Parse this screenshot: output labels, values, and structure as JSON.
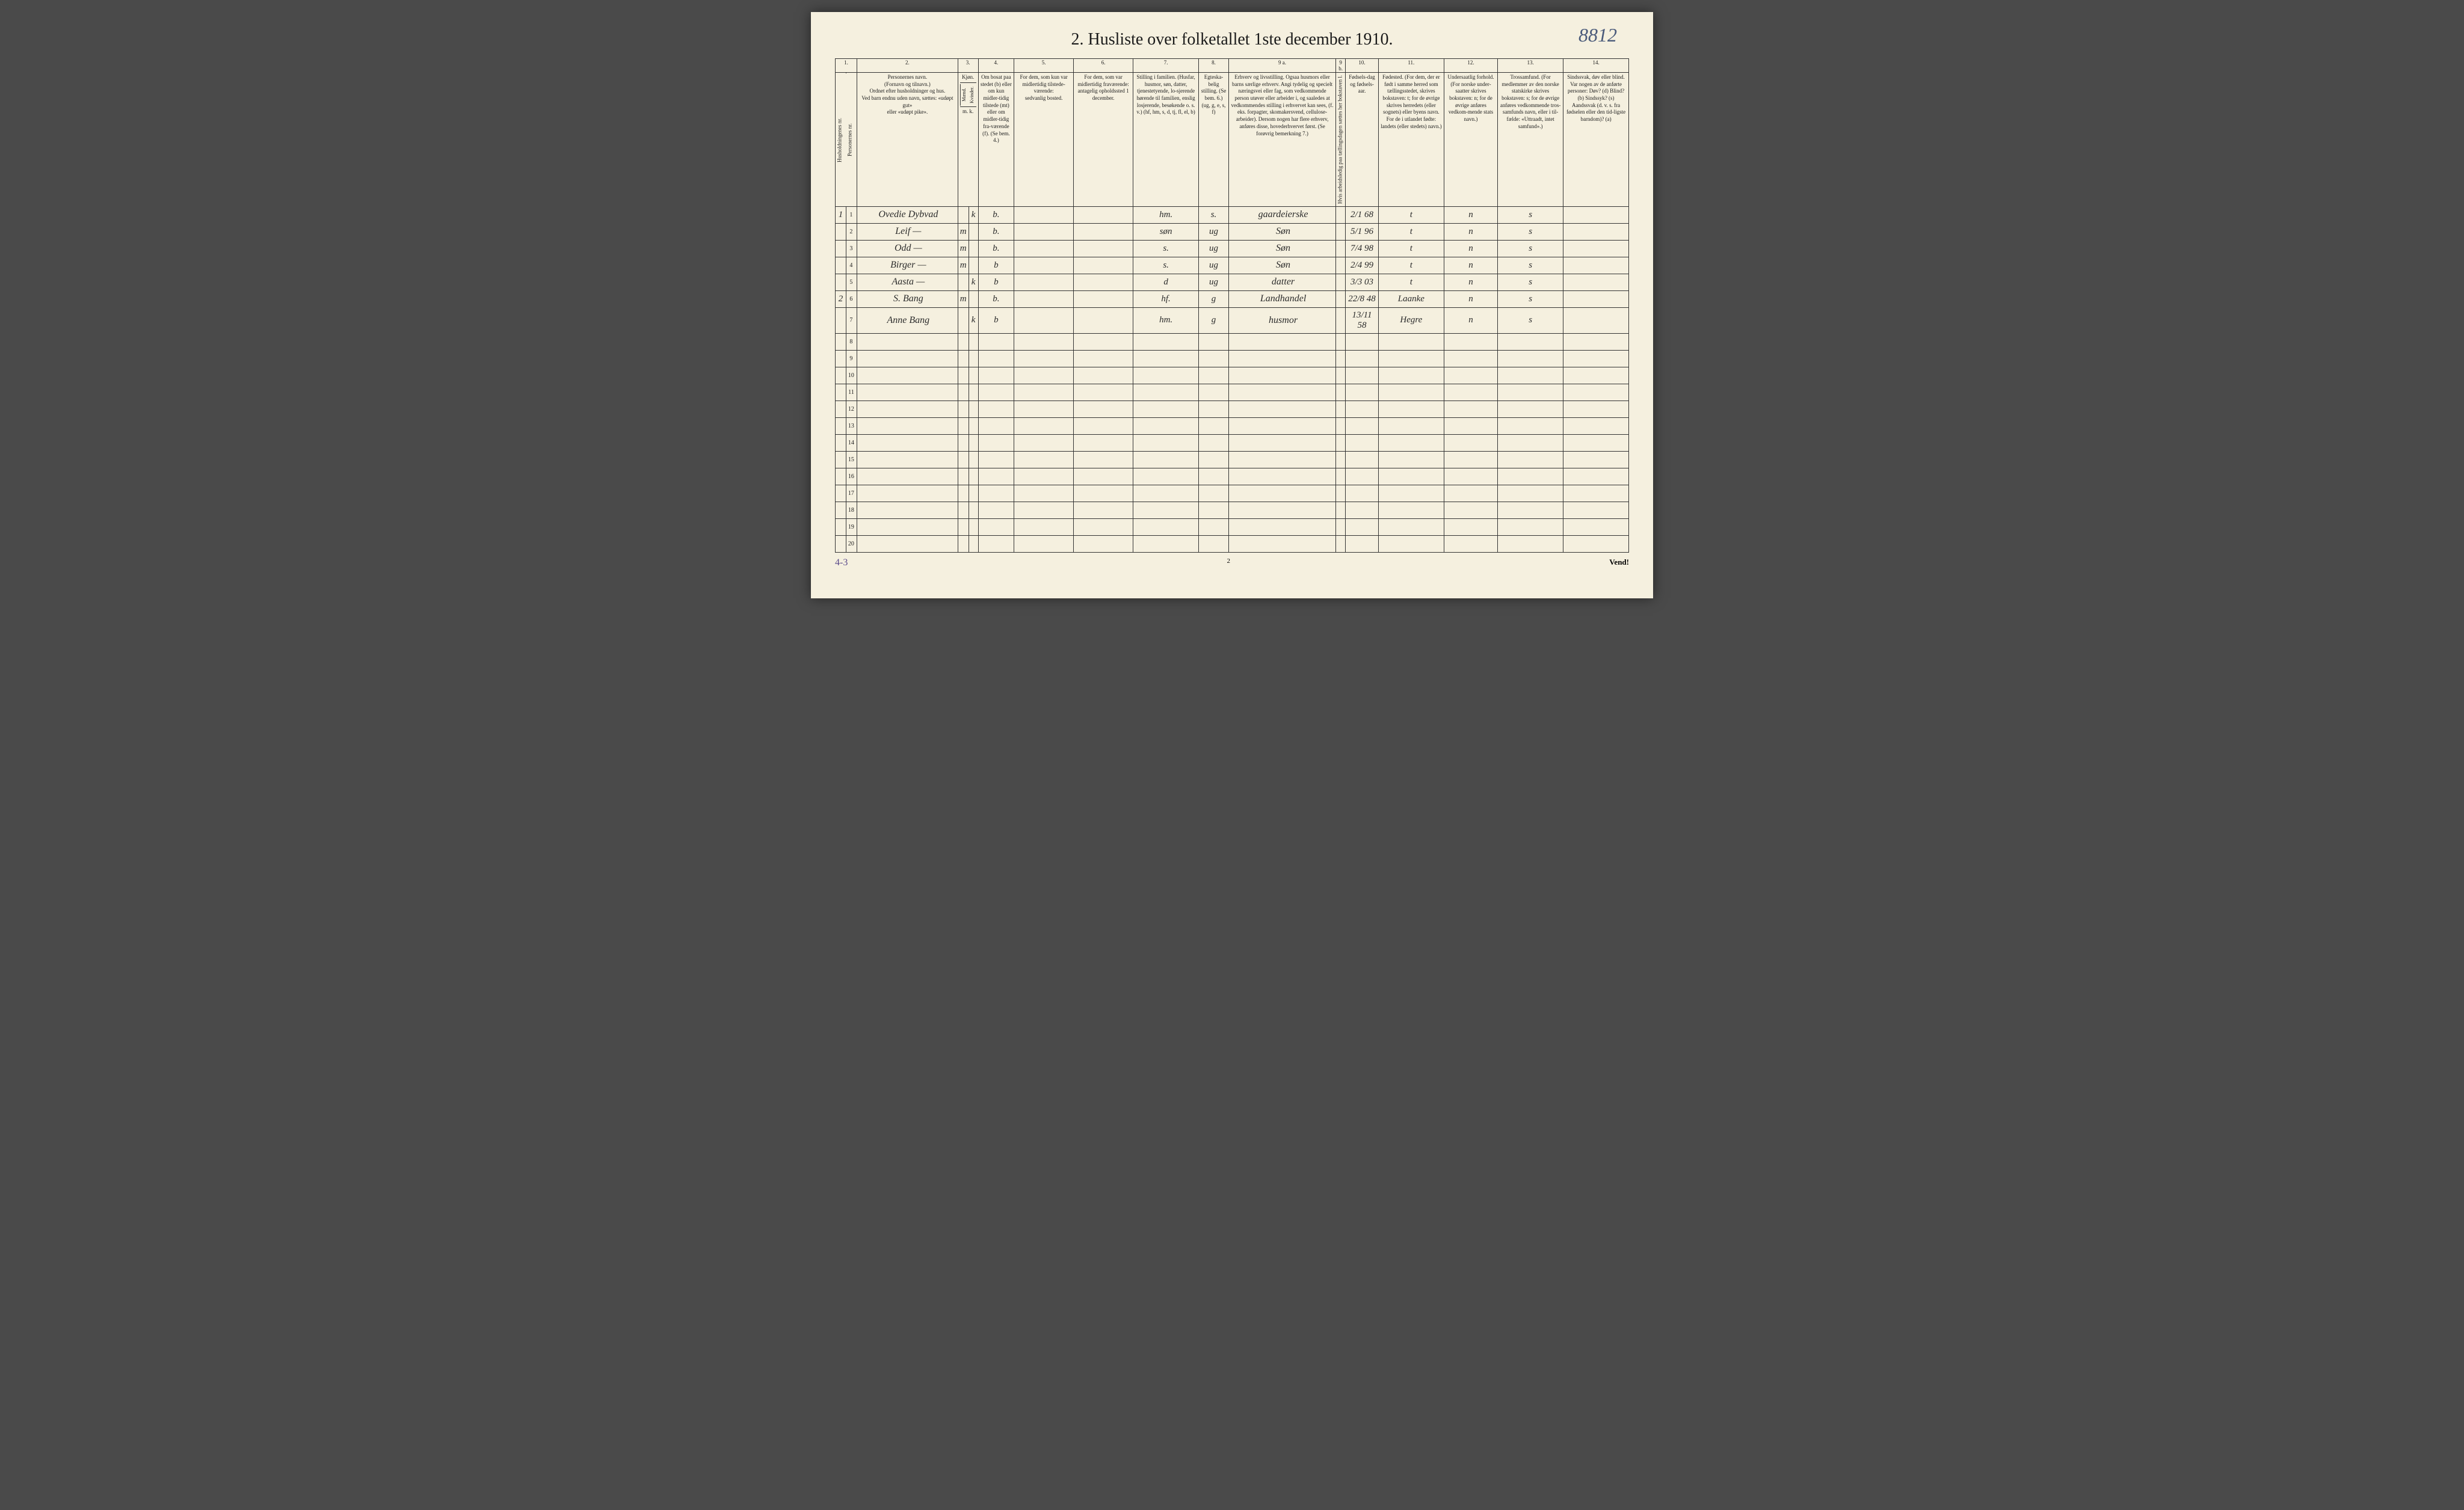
{
  "handwritten_topright": "8812",
  "title": "2. Husliste over folketallet 1ste december 1910.",
  "column_numbers": [
    "1.",
    "2.",
    "3.",
    "4.",
    "5.",
    "6.",
    "7.",
    "8.",
    "9 a.",
    "9 b.",
    "10.",
    "11.",
    "12.",
    "13.",
    "14."
  ],
  "headers": {
    "col1a": "Husholdningenes nr.",
    "col1b": "Personernes nr.",
    "col2": "Personernes navn.\n(Fornavn og tilnavn.)\nOrdnet efter husholdninger og hus.\nVed barn endnu uden navn, sættes: «udøpt gut»\neller «udøpt pike».",
    "col3_top": "Kjøn.",
    "col3a": "Mænd.",
    "col3b": "Kvinder.",
    "col3_bottom": "m. k.",
    "col4": "Om bosat paa stedet (b) eller om kun midler-tidig tilstede (mt) eller om midler-tidig fra-værende (f). (Se bem. 4.)",
    "col5": "For dem, som kun var midlertidig tilstede-værende:\nsedvanlig bosted.",
    "col6": "For dem, som var midlertidig fraværende:\nantagelig opholdssted 1 december.",
    "col7": "Stilling i familien.\n(Husfar, husmor, søn, datter, tjenestetyende, lo-sjerende hørende til familien, enslig losjerende, besøkende o. s. v.)\n(hf, hm, s, d, tj, fl, el, b)",
    "col8": "Egteska-belig stilling. (Se bem. 6.)\n(ug, g, e, s, f)",
    "col9a": "Erhverv og livsstilling.\nOgsaa husmors eller barns særlige erhverv. Angi tydelig og specielt næringsvei eller fag, som vedkommende person utøver eller arbeider i, og saaledes at vedkommendes stilling i erhvervet kan sees, (f. eks. forpagter, skomakersvend, cellulose-arbeider). Dersom nogen har flere erhverv, anføres disse, hovederhvervet først.\n(Se forøvrig bemerkning 7.)",
    "col9b": "Hvis arbeidsledig paa tællingsdagen sættes her bokstaven l.",
    "col10": "Fødsels-dag og fødsels-aar.",
    "col11": "Fødested.\n(For dem, der er født i samme herred som tællingsstedet, skrives bokstaven: t; for de øvrige skrives herredets (eller sognets) eller byens navn. For de i utlandet fødte: landets (eller stedets) navn.)",
    "col12": "Undersaatlig forhold.\n(For norske under-saatter skrives bokstaven: n; for de øvrige anføres vedkom-mende stats navn.)",
    "col13": "Trossamfund.\n(For medlemmer av den norske statskirke skrives bokstaven: s; for de øvrige anføres vedkommende tros-samfunds navn, eller i til-fælde: «Uttraadt, intet samfund».)",
    "col14": "Sindssvak, døv eller blind.\nVar nogen av de anførte personer:\nDøv? (d)\nBlind? (b)\nSindssyk? (s)\nAandssvak (d. v. s. fra fødselen eller den tid-ligste barndom)? (a)"
  },
  "rows": [
    {
      "hh": "1",
      "pn": "1",
      "name": "Ovedie Dybvad",
      "sex_m": "",
      "sex_k": "k",
      "res": "b.",
      "c5": "",
      "c6": "",
      "fam": "hm.",
      "eg": "s.",
      "erhverv": "gaardeierske",
      "c9b": "",
      "dob": "2/1 68",
      "fsted": "t",
      "under": "n",
      "tros": "s",
      "c14": ""
    },
    {
      "hh": "",
      "pn": "2",
      "name": "Leif    —",
      "sex_m": "m",
      "sex_k": "",
      "res": "b.",
      "c5": "",
      "c6": "",
      "fam": "søn",
      "eg": "ug",
      "erhverv": "Søn",
      "c9b": "",
      "dob": "5/1 96",
      "fsted": "t",
      "under": "n",
      "tros": "s",
      "c14": ""
    },
    {
      "hh": "",
      "pn": "3",
      "name": "Odd    —",
      "sex_m": "m",
      "sex_k": "",
      "res": "b.",
      "c5": "",
      "c6": "",
      "fam": "s.",
      "eg": "ug",
      "erhverv": "Søn",
      "c9b": "",
      "dob": "7/4 98",
      "fsted": "t",
      "under": "n",
      "tros": "s",
      "c14": ""
    },
    {
      "hh": "",
      "pn": "4",
      "name": "Birger    —",
      "sex_m": "m",
      "sex_k": "",
      "res": "b",
      "c5": "",
      "c6": "",
      "fam": "s.",
      "eg": "ug",
      "erhverv": "Søn",
      "c9b": "",
      "dob": "2/4 99",
      "fsted": "t",
      "under": "n",
      "tros": "s",
      "c14": ""
    },
    {
      "hh": "",
      "pn": "5",
      "name": "Aasta    —",
      "sex_m": "",
      "sex_k": "k",
      "res": "b",
      "c5": "",
      "c6": "",
      "fam": "d",
      "eg": "ug",
      "erhverv": "datter",
      "c9b": "",
      "dob": "3/3 03",
      "fsted": "t",
      "under": "n",
      "tros": "s",
      "c14": ""
    },
    {
      "hh": "2",
      "pn": "6",
      "name": "S. Bang",
      "sex_m": "m",
      "sex_k": "",
      "res": "b.",
      "c5": "",
      "c6": "",
      "fam": "hf.",
      "eg": "g",
      "erhverv": "Landhandel",
      "c9b": "",
      "dob": "22/8 48",
      "fsted": "Laanke",
      "under": "n",
      "tros": "s",
      "c14": ""
    },
    {
      "hh": "",
      "pn": "7",
      "name": "Anne Bang",
      "sex_m": "",
      "sex_k": "k",
      "res": "b",
      "c5": "",
      "c6": "",
      "fam": "hm.",
      "eg": "g",
      "erhverv": "husmor",
      "c9b": "",
      "dob": "13/11 58",
      "fsted": "Hegre",
      "under": "n",
      "tros": "s",
      "c14": ""
    }
  ],
  "empty_rows": [
    8,
    9,
    10,
    11,
    12,
    13,
    14,
    15,
    16,
    17,
    18,
    19,
    20
  ],
  "bottom_note": "4-3",
  "page_num": "2",
  "vend": "Vend!",
  "col_widths": {
    "c1a": "18px",
    "c1b": "18px",
    "c2": "170px",
    "c3a": "16px",
    "c3b": "16px",
    "c4": "60px",
    "c5": "100px",
    "c6": "100px",
    "c7": "110px",
    "c8": "50px",
    "c9a": "180px",
    "c9b": "16px",
    "c10": "55px",
    "c11": "110px",
    "c12": "90px",
    "c13": "110px",
    "c14": "110px"
  }
}
